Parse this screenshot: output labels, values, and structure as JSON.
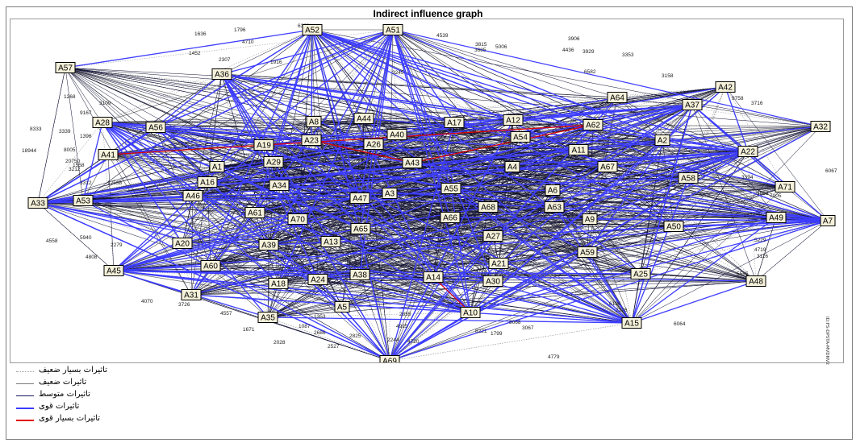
{
  "title": "Indirect influence graph",
  "side_note": "ID:FS-DPSTA-MVDNV2",
  "legend": [
    {
      "label": "تاثیرات بسیار ضعیف",
      "style": "dotted",
      "color": "#9a9a9a"
    },
    {
      "label": "تاثیرات ضعیف",
      "style": "solid-thin",
      "color": "#7a7a7a"
    },
    {
      "label": "تاثیرات متوسط",
      "style": "solid",
      "color": "#1a1a60"
    },
    {
      "label": "تاثیرات قوی",
      "style": "thick",
      "color": "#3a3aff"
    },
    {
      "label": "تاثیرات بسیار قوی",
      "style": "thick",
      "color": "#e00000"
    }
  ],
  "colors": {
    "very_weak": "#a5a5a5",
    "weak": "#707070",
    "moderate": "#111133",
    "strong": "#3d3dff",
    "very_strong": "#e20000",
    "node_fill": "#f5f1da"
  },
  "nodes": [
    {
      "id": "A52"
    },
    {
      "id": "A51"
    },
    {
      "id": "A57"
    },
    {
      "id": "A36"
    },
    {
      "id": "A42"
    },
    {
      "id": "A64"
    },
    {
      "id": "A37"
    },
    {
      "id": "A28"
    },
    {
      "id": "A56"
    },
    {
      "id": "A8"
    },
    {
      "id": "A44"
    },
    {
      "id": "A17"
    },
    {
      "id": "A12"
    },
    {
      "id": "A62"
    },
    {
      "id": "A32"
    },
    {
      "id": "A40"
    },
    {
      "id": "A54"
    },
    {
      "id": "A41"
    },
    {
      "id": "A19"
    },
    {
      "id": "A23"
    },
    {
      "id": "A26"
    },
    {
      "id": "A11"
    },
    {
      "id": "A2"
    },
    {
      "id": "A22"
    },
    {
      "id": "A29"
    },
    {
      "id": "A43"
    },
    {
      "id": "A4"
    },
    {
      "id": "A67"
    },
    {
      "id": "A1"
    },
    {
      "id": "A16"
    },
    {
      "id": "A58"
    },
    {
      "id": "A34"
    },
    {
      "id": "A55"
    },
    {
      "id": "A6"
    },
    {
      "id": "A71"
    },
    {
      "id": "A46"
    },
    {
      "id": "A3"
    },
    {
      "id": "A47"
    },
    {
      "id": "A33"
    },
    {
      "id": "A53"
    },
    {
      "id": "A68"
    },
    {
      "id": "A63"
    },
    {
      "id": "A61"
    },
    {
      "id": "A70"
    },
    {
      "id": "A66"
    },
    {
      "id": "A9"
    },
    {
      "id": "A49"
    },
    {
      "id": "A7"
    },
    {
      "id": "A65"
    },
    {
      "id": "A50"
    },
    {
      "id": "A27"
    },
    {
      "id": "A20"
    },
    {
      "id": "A39"
    },
    {
      "id": "A13"
    },
    {
      "id": "A59"
    },
    {
      "id": "A60"
    },
    {
      "id": "A45"
    },
    {
      "id": "A21"
    },
    {
      "id": "A38"
    },
    {
      "id": "A25"
    },
    {
      "id": "A24"
    },
    {
      "id": "A18"
    },
    {
      "id": "A14"
    },
    {
      "id": "A30"
    },
    {
      "id": "A48"
    },
    {
      "id": "A31"
    },
    {
      "id": "A5"
    },
    {
      "id": "A10"
    },
    {
      "id": "A35"
    },
    {
      "id": "A15"
    },
    {
      "id": "A69"
    }
  ],
  "edge_labels": [
    "6363",
    "1636",
    "1796",
    "4710",
    "4539",
    "3906",
    "1452",
    "2307",
    "3815",
    "5006",
    "4436",
    "3929",
    "3353",
    "6582",
    "3158",
    "3716",
    "9758",
    "1268",
    "3109",
    "9167",
    "8333",
    "3339",
    "1396",
    "18944",
    "8005",
    "20750",
    "3212",
    "3394",
    "6067",
    "2527",
    "4558",
    "5940",
    "4808",
    "2279",
    "4070",
    "3726",
    "4557",
    "1671",
    "2028",
    "2527",
    "2825",
    "1087",
    "2686",
    "4915",
    "2244",
    "4720",
    "8221",
    "3067",
    "1799",
    "4779",
    "6161",
    "6064",
    "5585",
    "4719",
    "5229",
    "3116",
    "12538",
    "3312",
    "1558",
    "3245",
    "1353",
    "2855",
    "9858",
    "8068",
    "2276",
    "6196",
    "7005",
    "2563",
    "1916",
    "3685"
  ]
}
